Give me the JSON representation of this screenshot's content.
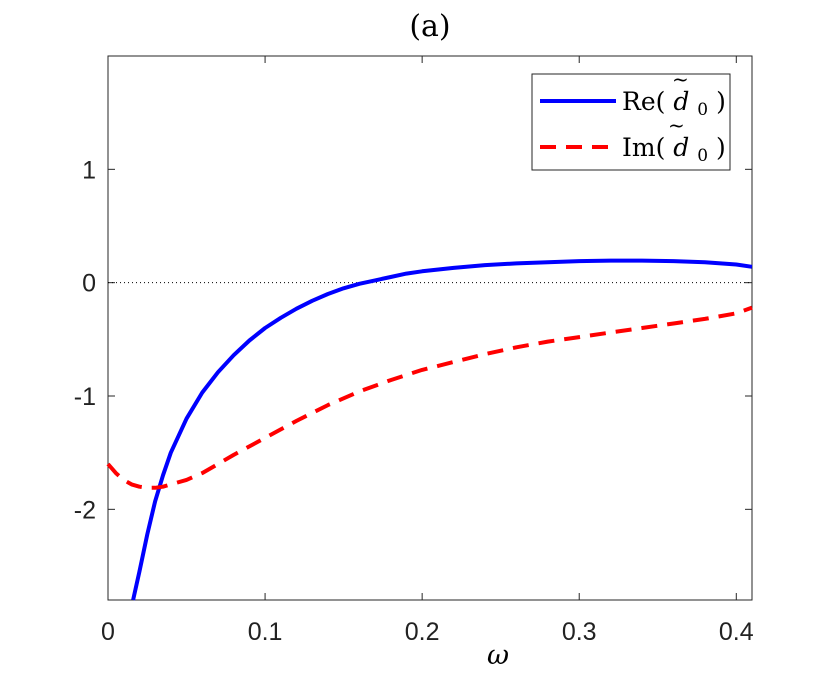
{
  "chart_data": {
    "type": "line",
    "title": "(a)",
    "xlabel": "ω",
    "ylabel": "",
    "xlim": [
      0,
      0.41
    ],
    "ylim": [
      -2.8,
      2
    ],
    "xticks": [
      0,
      0.1,
      0.2,
      0.3,
      0.4
    ],
    "xtick_labels": [
      "0",
      "0.1",
      "0.2",
      "0.3",
      "0.4"
    ],
    "yticks": [
      1,
      0,
      -1,
      -2
    ],
    "ytick_labels": [
      "1",
      "0",
      "-1",
      "-2"
    ],
    "grid": false,
    "legend_position": "top-right",
    "reference_line": {
      "y": 0,
      "style": "dotted"
    },
    "series": [
      {
        "name": "Re(d̃0)",
        "label_main": "Re(",
        "label_symbol": "d",
        "label_tilde": "~",
        "label_sub": "0",
        "label_close": ")",
        "color": "#0000ff",
        "style": "solid",
        "x": [
          0.016,
          0.02,
          0.025,
          0.03,
          0.035,
          0.04,
          0.05,
          0.06,
          0.07,
          0.08,
          0.09,
          0.1,
          0.11,
          0.12,
          0.13,
          0.14,
          0.15,
          0.16,
          0.17,
          0.18,
          0.19,
          0.2,
          0.22,
          0.24,
          0.26,
          0.28,
          0.3,
          0.32,
          0.34,
          0.36,
          0.38,
          0.4,
          0.41
        ],
        "y": [
          -2.8,
          -2.55,
          -2.22,
          -1.93,
          -1.7,
          -1.5,
          -1.2,
          -0.97,
          -0.79,
          -0.64,
          -0.51,
          -0.4,
          -0.31,
          -0.23,
          -0.16,
          -0.1,
          -0.05,
          -0.01,
          0.02,
          0.05,
          0.08,
          0.1,
          0.13,
          0.155,
          0.17,
          0.18,
          0.19,
          0.195,
          0.195,
          0.19,
          0.18,
          0.16,
          0.14
        ]
      },
      {
        "name": "Im(d̃0)",
        "label_main": "Im(",
        "label_symbol": "d",
        "label_tilde": "~",
        "label_sub": "0",
        "label_close": ")",
        "color": "#ff0000",
        "style": "dashed",
        "x": [
          0,
          0.005,
          0.01,
          0.015,
          0.02,
          0.025,
          0.03,
          0.035,
          0.04,
          0.05,
          0.06,
          0.07,
          0.08,
          0.1,
          0.12,
          0.14,
          0.16,
          0.18,
          0.2,
          0.22,
          0.24,
          0.26,
          0.28,
          0.3,
          0.32,
          0.34,
          0.36,
          0.38,
          0.4,
          0.41
        ],
        "y": [
          -1.6,
          -1.68,
          -1.74,
          -1.78,
          -1.8,
          -1.81,
          -1.81,
          -1.8,
          -1.78,
          -1.74,
          -1.68,
          -1.6,
          -1.52,
          -1.37,
          -1.22,
          -1.08,
          -0.96,
          -0.86,
          -0.77,
          -0.7,
          -0.63,
          -0.57,
          -0.52,
          -0.48,
          -0.44,
          -0.4,
          -0.36,
          -0.32,
          -0.27,
          -0.22
        ]
      }
    ]
  }
}
